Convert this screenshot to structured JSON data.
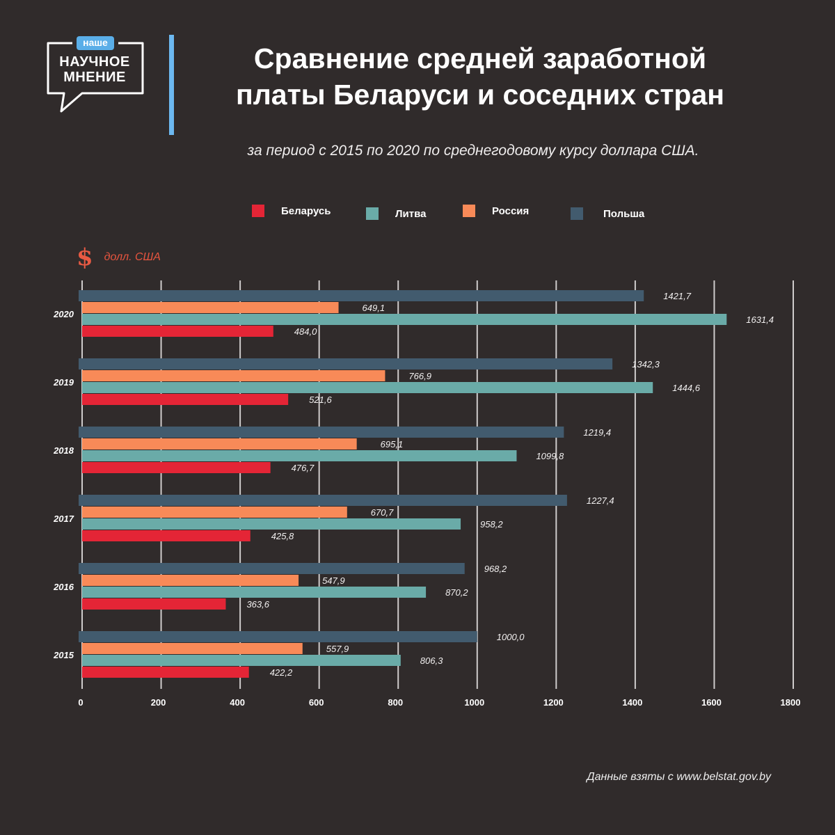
{
  "logo": {
    "badge": "наше",
    "line1": "НАУЧНОЕ",
    "line2": "МНЕНИЕ"
  },
  "header": {
    "title_line1": "Сравнение средней заработной",
    "title_line2": "платы Беларуси и соседних стран",
    "subtitle": "за период с 2015 по 2020 по среднегодовому курсу доллара США."
  },
  "unit": {
    "icon": "dollar-icon",
    "symbol": "$",
    "label": "долл. США"
  },
  "source": "Данные взяты с www.belstat.gov.by",
  "chart_data": {
    "type": "bar",
    "orientation": "horizontal",
    "title": "Сравнение средней заработной платы Беларуси и соседних стран",
    "subtitle": "за период с 2015 по 2020 по среднегодовому курсу доллара США.",
    "xlabel": "долл. США",
    "ylabel": "",
    "xlim": [
      0,
      1800
    ],
    "xticks": [
      0,
      200,
      400,
      600,
      800,
      1000,
      1200,
      1400,
      1600,
      1800
    ],
    "xtick_labels": [
      "0",
      "200",
      "400",
      "600",
      "800",
      "1000",
      "1200",
      "1400",
      "1600",
      "1800"
    ],
    "grid": "vertical",
    "legend_position": "top",
    "categories": [
      "2020",
      "2019",
      "2018",
      "2017",
      "2016",
      "2015"
    ],
    "series": [
      {
        "name": "Польша",
        "color": "#425b6e",
        "values": [
          1421.7,
          1342.3,
          1219.4,
          1227.4,
          968.2,
          1000.0
        ],
        "labels": [
          "1421,7",
          "1342,3",
          "1219,4",
          "1227,4",
          "968,2",
          "1000,0"
        ]
      },
      {
        "name": "Россия",
        "color": "#f88a58",
        "values": [
          649.1,
          766.9,
          695.1,
          670.7,
          547.9,
          557.9
        ],
        "labels": [
          "649,1",
          "766,9",
          "695,1",
          "670,7",
          "547,9",
          "557,9"
        ]
      },
      {
        "name": "Литва",
        "color": "#6aaba8",
        "values": [
          1631.4,
          1444.6,
          1099.8,
          958.2,
          870.2,
          806.3
        ],
        "labels": [
          "1631,4",
          "1444,6",
          "1099,8",
          "958,2",
          "870,2",
          "806,3"
        ]
      },
      {
        "name": "Беларусь",
        "color": "#e42536",
        "values": [
          484.0,
          521.6,
          476.7,
          425.8,
          363.6,
          422.2
        ],
        "labels": [
          "484,0",
          "521,6",
          "476,7",
          "425,8",
          "363,6",
          "422,2"
        ]
      }
    ],
    "legend": [
      {
        "name": "Беларусь",
        "color": "#e42536"
      },
      {
        "name": "Литва",
        "color": "#6aaba8"
      },
      {
        "name": "Россия",
        "color": "#f88a58"
      },
      {
        "name": "Польша",
        "color": "#425b6e"
      }
    ]
  }
}
